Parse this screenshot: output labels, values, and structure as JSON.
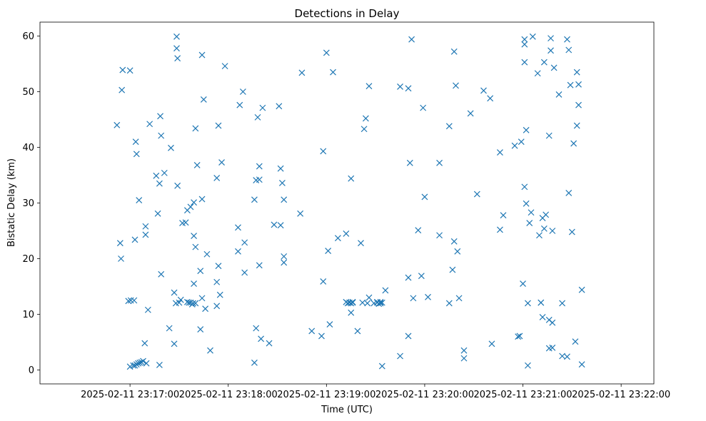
{
  "chart_data": {
    "type": "scatter",
    "title": "Detections in Delay",
    "xlabel": "Time (UTC)",
    "ylabel": "Bistatic Delay (km)",
    "xlim": [
      -55,
      320
    ],
    "ylim": [
      -2.5,
      62.5
    ],
    "x_unit": "seconds after 2025-02-11 23:17:00 UTC",
    "marker": "x",
    "color": "#1f77b4",
    "xticks": [
      {
        "value": 0,
        "label": "2025-02-11 23:17:00"
      },
      {
        "value": 60,
        "label": "2025-02-11 23:18:00"
      },
      {
        "value": 120,
        "label": "2025-02-11 23:19:00"
      },
      {
        "value": 180,
        "label": "2025-02-11 23:20:00"
      },
      {
        "value": 240,
        "label": "2025-02-11 23:21:00"
      },
      {
        "value": 300,
        "label": "2025-02-11 23:22:00"
      }
    ],
    "yticks": [
      {
        "value": 0,
        "label": "0"
      },
      {
        "value": 10,
        "label": "10"
      },
      {
        "value": 20,
        "label": "20"
      },
      {
        "value": 30,
        "label": "30"
      },
      {
        "value": 40,
        "label": "40"
      },
      {
        "value": 50,
        "label": "50"
      },
      {
        "value": 60,
        "label": "60"
      }
    ],
    "points": [
      [
        -8,
        44
      ],
      [
        -6,
        22.8
      ],
      [
        -5.5,
        20
      ],
      [
        -5,
        50.3
      ],
      [
        -4.5,
        53.9
      ],
      [
        -1,
        12.4
      ],
      [
        0,
        0.6
      ],
      [
        0,
        53.8
      ],
      [
        0.5,
        12.5
      ],
      [
        2,
        0.8
      ],
      [
        2.5,
        12.5
      ],
      [
        3,
        23.4
      ],
      [
        3,
        0.8
      ],
      [
        3.5,
        41
      ],
      [
        4,
        38.8
      ],
      [
        4,
        1
      ],
      [
        5,
        1.2
      ],
      [
        5.5,
        30.5
      ],
      [
        6,
        1.3
      ],
      [
        7,
        1.4
      ],
      [
        8,
        1.6
      ],
      [
        9,
        4.8
      ],
      [
        9.5,
        24.3
      ],
      [
        9.5,
        25.8
      ],
      [
        10,
        1.2
      ],
      [
        11,
        10.8
      ],
      [
        12,
        44.2
      ],
      [
        16,
        34.9
      ],
      [
        17,
        28.1
      ],
      [
        18,
        0.9
      ],
      [
        18.5,
        45.6
      ],
      [
        18,
        33.5
      ],
      [
        19,
        42.1
      ],
      [
        19,
        17.2
      ],
      [
        21,
        35.4
      ],
      [
        24,
        7.5
      ],
      [
        25,
        39.9
      ],
      [
        27,
        13.9
      ],
      [
        27,
        4.7
      ],
      [
        28,
        12
      ],
      [
        28.5,
        59.9
      ],
      [
        28.5,
        57.8
      ],
      [
        29,
        33.1
      ],
      [
        29,
        56
      ],
      [
        30,
        12.1
      ],
      [
        31,
        12.6
      ],
      [
        32,
        26.4
      ],
      [
        34,
        26.5
      ],
      [
        35,
        28.7
      ],
      [
        35,
        12.2
      ],
      [
        36,
        12.1
      ],
      [
        37,
        29.3
      ],
      [
        37,
        12.1
      ],
      [
        38,
        11.8
      ],
      [
        38.5,
        12
      ],
      [
        39,
        24.1
      ],
      [
        39,
        30.1
      ],
      [
        39,
        15.5
      ],
      [
        40,
        22.1
      ],
      [
        40,
        12
      ],
      [
        40,
        43.4
      ],
      [
        41,
        36.8
      ],
      [
        43,
        7.3
      ],
      [
        43,
        17.8
      ],
      [
        44,
        30.7
      ],
      [
        44,
        56.6
      ],
      [
        44,
        12.9
      ],
      [
        45,
        48.6
      ],
      [
        46,
        11
      ],
      [
        47,
        20.8
      ],
      [
        49,
        3.5
      ],
      [
        53,
        11.5
      ],
      [
        53,
        34.5
      ],
      [
        53,
        15.8
      ],
      [
        54,
        43.9
      ],
      [
        54,
        18.7
      ],
      [
        55,
        13.5
      ],
      [
        56,
        37.3
      ],
      [
        58,
        54.6
      ],
      [
        66,
        25.6
      ],
      [
        66,
        21.3
      ],
      [
        67,
        47.6
      ],
      [
        69,
        50
      ],
      [
        70,
        17.5
      ],
      [
        70,
        22.9
      ],
      [
        76,
        1.3
      ],
      [
        76,
        30.6
      ],
      [
        77,
        34.1
      ],
      [
        77,
        7.5
      ],
      [
        78,
        45.4
      ],
      [
        79,
        18.8
      ],
      [
        79,
        34.2
      ],
      [
        79,
        36.6
      ],
      [
        80,
        5.6
      ],
      [
        81,
        47.1
      ],
      [
        85,
        4.8
      ],
      [
        88,
        26.1
      ],
      [
        91,
        47.4
      ],
      [
        92,
        26
      ],
      [
        92,
        36.2
      ],
      [
        93,
        33.6
      ],
      [
        94,
        30.6
      ],
      [
        94,
        20.4
      ],
      [
        94,
        19.3
      ],
      [
        104,
        28.1
      ],
      [
        105,
        53.4
      ],
      [
        111,
        7
      ],
      [
        117,
        6.1
      ],
      [
        118,
        39.3
      ],
      [
        118,
        15.9
      ],
      [
        120,
        57
      ],
      [
        121,
        21.4
      ],
      [
        122,
        8.2
      ],
      [
        124,
        53.5
      ],
      [
        127,
        23.7
      ],
      [
        132,
        12.2
      ],
      [
        132,
        24.5
      ],
      [
        133,
        12
      ],
      [
        134,
        12.1
      ],
      [
        135,
        12
      ],
      [
        135,
        10.3
      ],
      [
        135,
        34.4
      ],
      [
        136,
        12.1
      ],
      [
        136,
        12.2
      ],
      [
        139,
        7
      ],
      [
        141,
        22.8
      ],
      [
        142,
        12.1
      ],
      [
        143,
        43.3
      ],
      [
        144,
        45.2
      ],
      [
        145,
        12
      ],
      [
        146,
        13
      ],
      [
        146,
        51
      ],
      [
        149,
        12
      ],
      [
        151,
        12.1
      ],
      [
        151,
        12.2
      ],
      [
        152,
        11.9
      ],
      [
        153,
        12.2
      ],
      [
        153,
        12
      ],
      [
        154,
        0.7
      ],
      [
        154,
        12.1
      ],
      [
        156,
        14.3
      ],
      [
        165,
        2.5
      ],
      [
        165,
        50.9
      ],
      [
        170,
        16.6
      ],
      [
        170,
        6.1
      ],
      [
        170,
        50.6
      ],
      [
        171,
        37.2
      ],
      [
        172,
        59.4
      ],
      [
        173,
        12.9
      ],
      [
        176,
        25.1
      ],
      [
        178,
        16.9
      ],
      [
        179,
        47.1
      ],
      [
        180,
        31.1
      ],
      [
        182,
        13.1
      ],
      [
        189,
        37.2
      ],
      [
        189,
        24.2
      ],
      [
        195,
        12
      ],
      [
        195,
        43.8
      ],
      [
        197,
        18
      ],
      [
        198,
        23.1
      ],
      [
        198,
        57.2
      ],
      [
        199,
        51.1
      ],
      [
        200,
        21.3
      ],
      [
        201,
        12.9
      ],
      [
        204,
        3.5
      ],
      [
        204,
        2.1
      ],
      [
        208,
        46.1
      ],
      [
        212,
        31.6
      ],
      [
        216,
        50.2
      ],
      [
        220,
        48.8
      ],
      [
        221,
        4.7
      ],
      [
        226,
        25.2
      ],
      [
        226,
        39.1
      ],
      [
        228,
        27.8
      ],
      [
        235,
        40.3
      ],
      [
        237,
        6
      ],
      [
        238,
        6.1
      ],
      [
        239,
        41
      ],
      [
        240,
        15.5
      ],
      [
        241,
        55.3
      ],
      [
        241,
        58.5
      ],
      [
        241,
        59.4
      ],
      [
        242,
        43.1
      ],
      [
        241,
        32.9
      ],
      [
        242,
        29.9
      ],
      [
        243,
        0.8
      ],
      [
        243,
        12
      ],
      [
        244,
        26.4
      ],
      [
        245,
        28.3
      ],
      [
        246,
        59.9
      ],
      [
        249,
        53.3
      ],
      [
        250,
        24.2
      ],
      [
        251,
        12.1
      ],
      [
        251,
        12.1
      ],
      [
        252,
        27.3
      ],
      [
        252,
        9.5
      ],
      [
        253,
        55.3
      ],
      [
        253,
        25.4
      ],
      [
        254,
        27.9
      ],
      [
        256,
        42.1
      ],
      [
        256,
        9
      ],
      [
        256,
        3.9
      ],
      [
        257,
        59.6
      ],
      [
        257,
        57.4
      ],
      [
        258,
        4
      ],
      [
        258,
        25
      ],
      [
        258,
        8.5
      ],
      [
        259,
        54.3
      ],
      [
        262,
        49.5
      ],
      [
        264,
        2.5
      ],
      [
        264,
        12
      ],
      [
        267,
        2.4
      ],
      [
        267,
        59.4
      ],
      [
        268,
        31.8
      ],
      [
        268,
        57.5
      ],
      [
        269,
        51.2
      ],
      [
        270,
        24.8
      ],
      [
        271,
        40.7
      ],
      [
        272,
        5.1
      ],
      [
        273,
        53.5
      ],
      [
        273,
        43.9
      ],
      [
        274,
        51.3
      ],
      [
        274,
        47.6
      ],
      [
        276,
        14.4
      ],
      [
        276,
        1
      ]
    ]
  }
}
